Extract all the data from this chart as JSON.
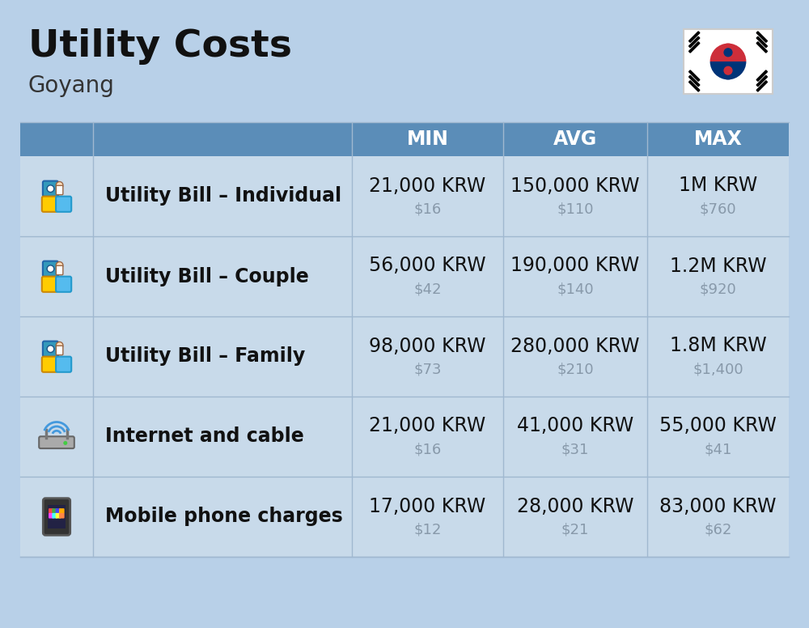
{
  "title": "Utility Costs",
  "subtitle": "Goyang",
  "background_color": "#b8d0e8",
  "header_bg_color": "#5b8db8",
  "header_text_color": "#ffffff",
  "row_bg_color": "#c8daea",
  "divider_color": "#a0b8d0",
  "label_color": "#111111",
  "usd_color": "#8899aa",
  "header_labels": [
    "MIN",
    "AVG",
    "MAX"
  ],
  "rows": [
    {
      "label": "Utility Bill – Individual",
      "min_krw": "21,000 KRW",
      "min_usd": "$16",
      "avg_krw": "150,000 KRW",
      "avg_usd": "$110",
      "max_krw": "1M KRW",
      "max_usd": "$760"
    },
    {
      "label": "Utility Bill – Couple",
      "min_krw": "56,000 KRW",
      "min_usd": "$42",
      "avg_krw": "190,000 KRW",
      "avg_usd": "$140",
      "max_krw": "1.2M KRW",
      "max_usd": "$920"
    },
    {
      "label": "Utility Bill – Family",
      "min_krw": "98,000 KRW",
      "min_usd": "$73",
      "avg_krw": "280,000 KRW",
      "avg_usd": "$210",
      "max_krw": "1.8M KRW",
      "max_usd": "$1,400"
    },
    {
      "label": "Internet and cable",
      "min_krw": "21,000 KRW",
      "min_usd": "$16",
      "avg_krw": "41,000 KRW",
      "avg_usd": "$31",
      "max_krw": "55,000 KRW",
      "max_usd": "$41"
    },
    {
      "label": "Mobile phone charges",
      "min_krw": "17,000 KRW",
      "min_usd": "$12",
      "avg_krw": "28,000 KRW",
      "avg_usd": "$21",
      "max_krw": "83,000 KRW",
      "max_usd": "$62"
    }
  ],
  "title_fontsize": 34,
  "subtitle_fontsize": 20,
  "header_fontsize": 17,
  "label_fontsize": 17,
  "value_fontsize": 17,
  "usd_fontsize": 13
}
